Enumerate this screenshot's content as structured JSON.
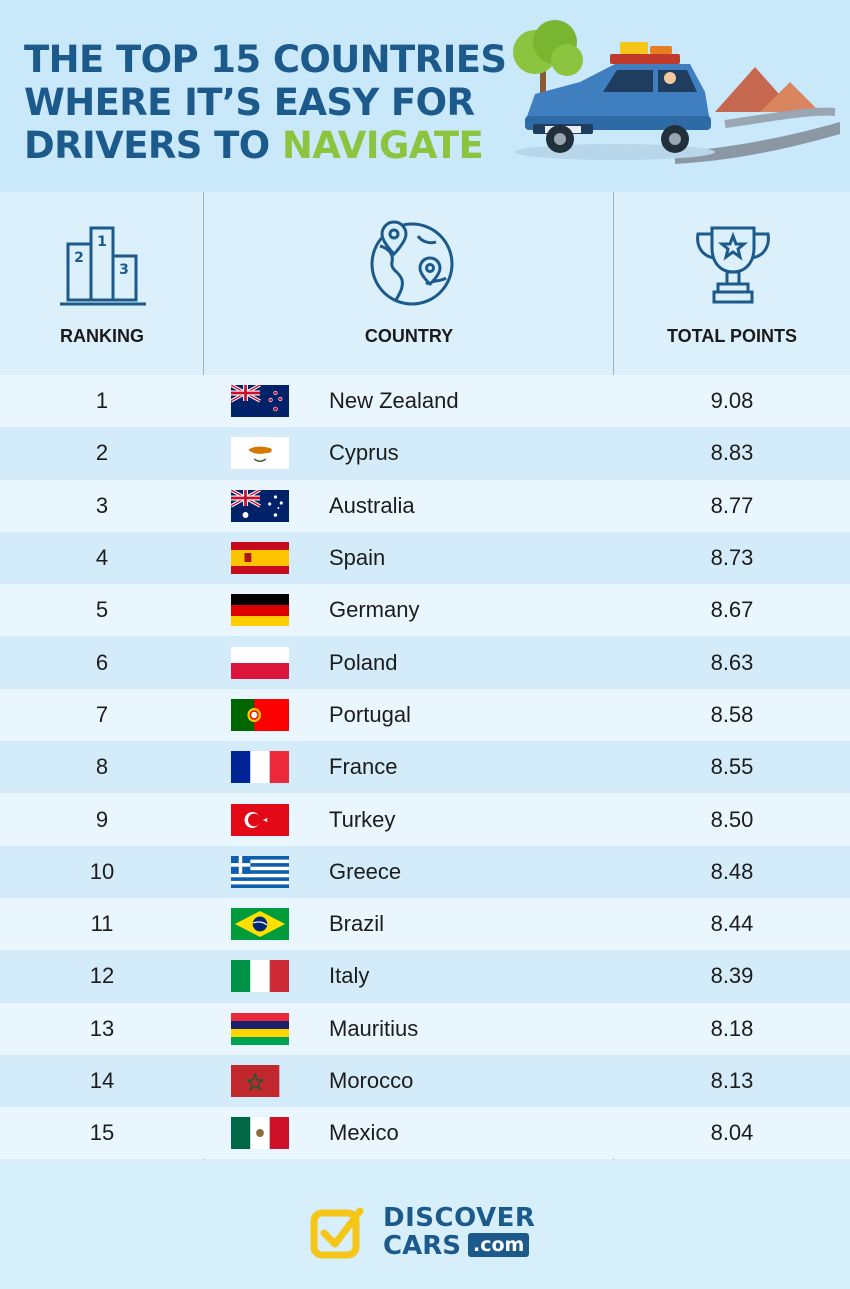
{
  "header": {
    "title_line1": "THE TOP 15 COUNTRIES",
    "title_line2": "WHERE IT’S EASY FOR",
    "title_line3_prefix": "DRIVERS TO ",
    "title_line3_accent": "NAVIGATE",
    "hero_icon": "car-road-trip-illustration"
  },
  "columns": {
    "ranking": "RANKING",
    "country": "COUNTRY",
    "points": "TOTAL POINTS",
    "ranking_icon": "podium-icon",
    "country_icon": "globe-pin-icon",
    "points_icon": "trophy-icon"
  },
  "rows": [
    {
      "rank": "1",
      "country": "New Zealand",
      "points": "9.08",
      "flag": "nz"
    },
    {
      "rank": "2",
      "country": "Cyprus",
      "points": "8.83",
      "flag": "cy"
    },
    {
      "rank": "3",
      "country": "Australia",
      "points": "8.77",
      "flag": "au"
    },
    {
      "rank": "4",
      "country": "Spain",
      "points": "8.73",
      "flag": "es"
    },
    {
      "rank": "5",
      "country": "Germany",
      "points": "8.67",
      "flag": "de"
    },
    {
      "rank": "6",
      "country": "Poland",
      "points": "8.63",
      "flag": "pl"
    },
    {
      "rank": "7",
      "country": "Portugal",
      "points": "8.58",
      "flag": "pt"
    },
    {
      "rank": "8",
      "country": "France",
      "points": "8.55",
      "flag": "fr"
    },
    {
      "rank": "9",
      "country": "Turkey",
      "points": "8.50",
      "flag": "tr"
    },
    {
      "rank": "10",
      "country": "Greece",
      "points": "8.48",
      "flag": "gr"
    },
    {
      "rank": "11",
      "country": "Brazil",
      "points": "8.44",
      "flag": "br"
    },
    {
      "rank": "12",
      "country": "Italy",
      "points": "8.39",
      "flag": "it"
    },
    {
      "rank": "13",
      "country": "Mauritius",
      "points": "8.18",
      "flag": "mu"
    },
    {
      "rank": "14",
      "country": "Morocco",
      "points": "8.13",
      "flag": "ma"
    },
    {
      "rank": "15",
      "country": "Mexico",
      "points": "8.04",
      "flag": "mx"
    }
  ],
  "logo": {
    "line1": "DISCOVER",
    "line2": "CARS",
    "suffix": ".com"
  },
  "colors": {
    "title_blue": "#1d5a8c",
    "accent_green": "#8bc53f",
    "logo_yellow": "#f5c518"
  }
}
